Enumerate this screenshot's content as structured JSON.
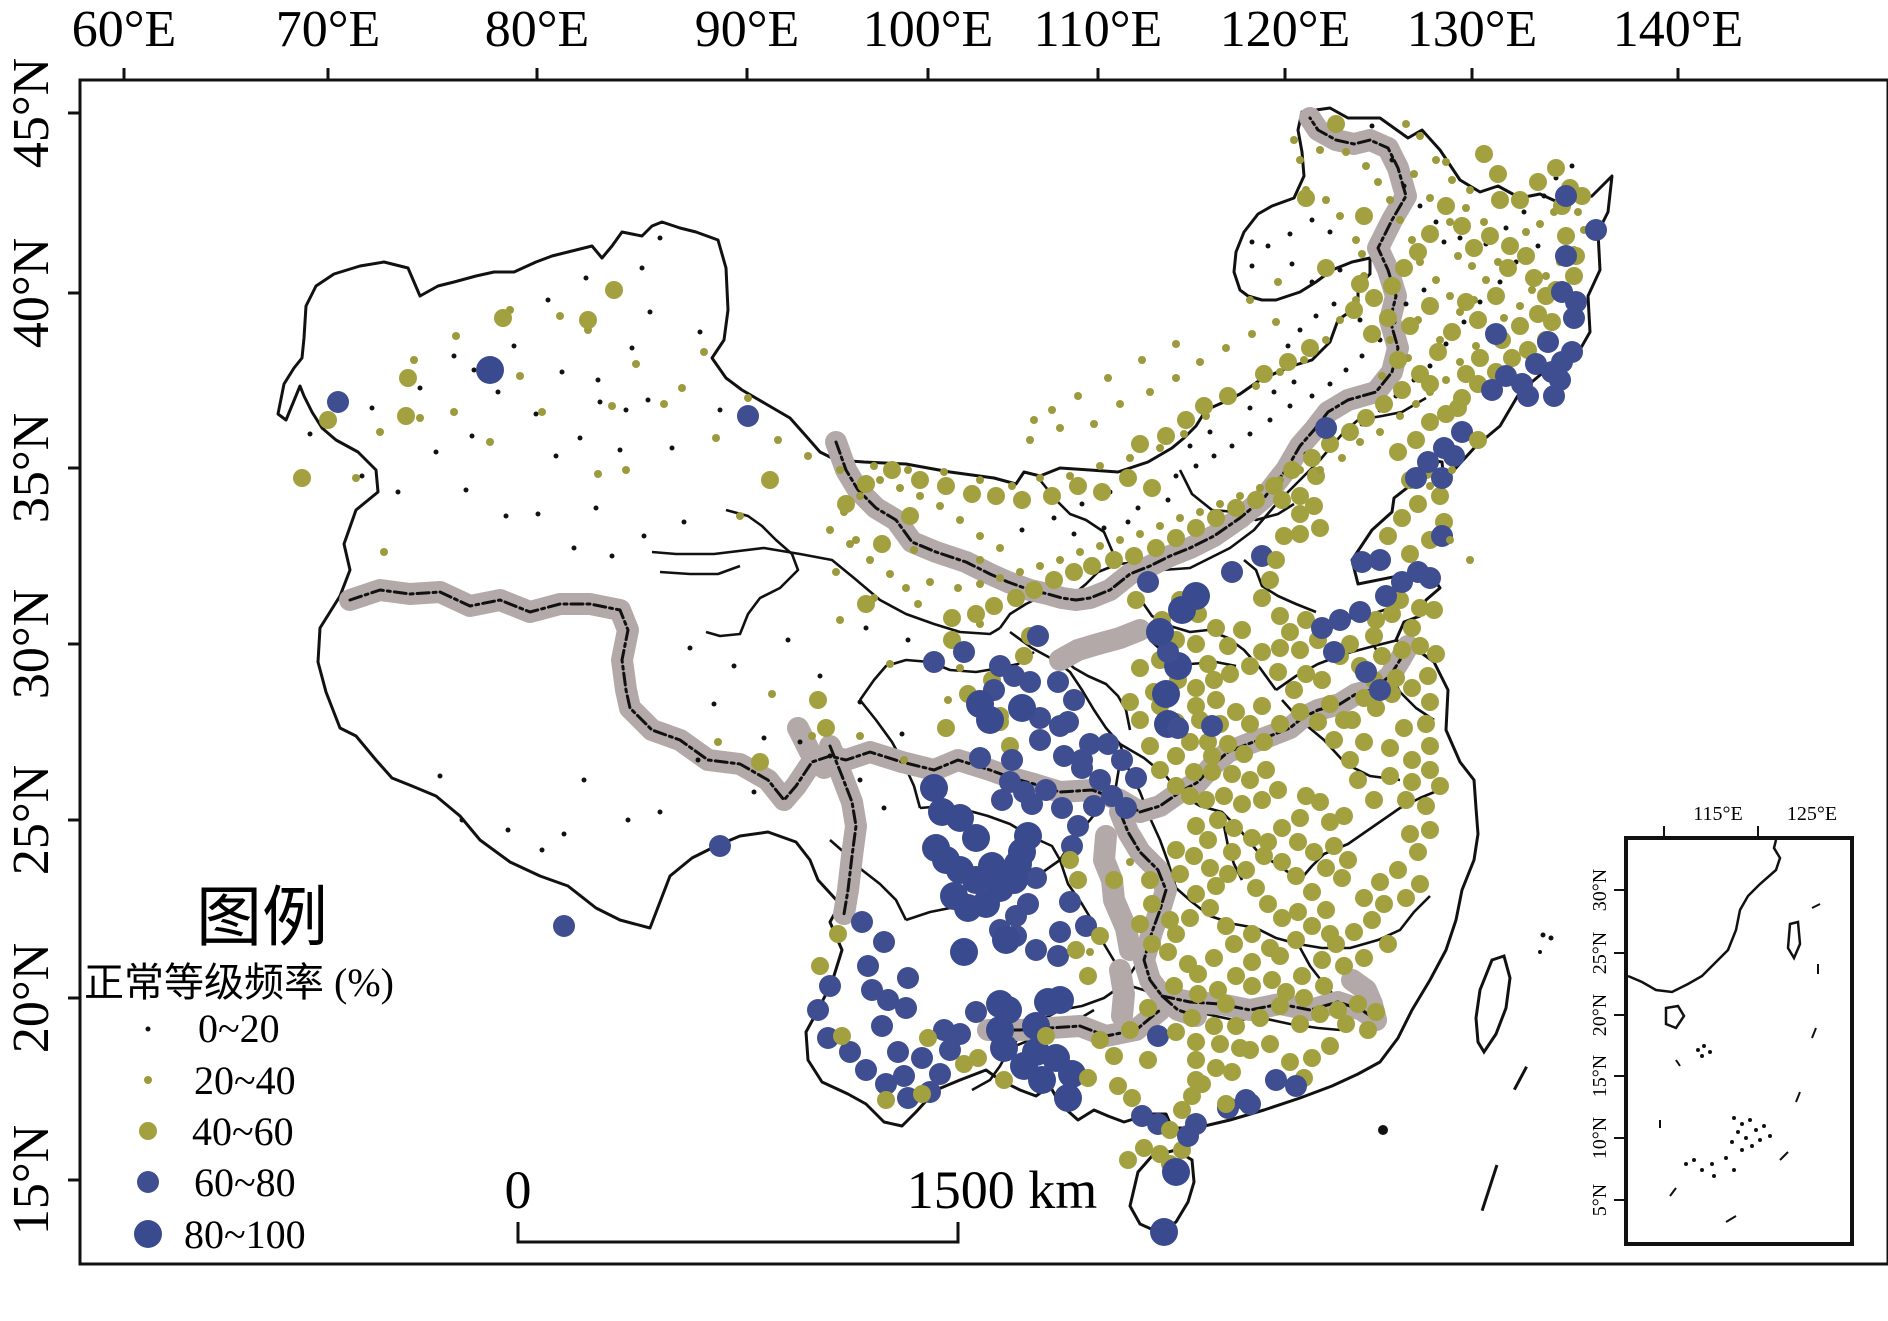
{
  "map": {
    "lon_labels": [
      "60°E",
      "70°E",
      "80°E",
      "90°E",
      "100°E",
      "110°E",
      "120°E",
      "130°E",
      "140°E"
    ],
    "lat_labels": [
      "45°N",
      "40°N",
      "35°N",
      "30°N",
      "25°N",
      "20°N",
      "15°N"
    ]
  },
  "legend": {
    "title": "图例",
    "subtitle": "正常等级频率 (%)",
    "classes": [
      {
        "label": "0~20",
        "color": "#111111"
      },
      {
        "label": "20~40",
        "color": "#9c9a3c"
      },
      {
        "label": "40~60",
        "color": "#a3a040"
      },
      {
        "label": "60~80",
        "color": "#3e4e91"
      },
      {
        "label": "80~100",
        "color": "#3a4a8f"
      }
    ]
  },
  "scale_bar": {
    "start_label": "0",
    "end_label": "1500 km"
  },
  "inset": {
    "lon_labels": [
      "115°E",
      "125°E"
    ],
    "lat_labels": [
      "30°N",
      "25°N",
      "20°N",
      "15°N",
      "10°N",
      "5°N"
    ]
  },
  "colors": {
    "region_boundary": "#b3a9a9",
    "outline": "#111111"
  }
}
